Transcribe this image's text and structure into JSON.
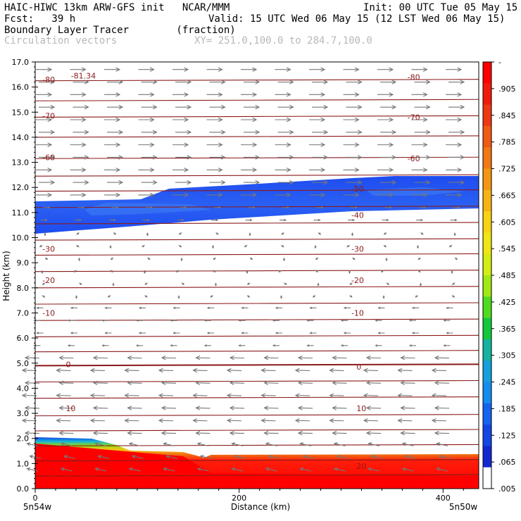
{
  "header": {
    "line1_left": "HAIC-HIWC 13km ARW-GFS init   NCAR/MMM",
    "line1_right": "Init: 00 UTC Tue 05 May 15",
    "fcst": "Fcst:   39 h",
    "valid": "Valid: 15 UTC Wed 06 May 15 (12 LST Wed 06 May 15)",
    "field1": "Boundary Layer Tracer        (fraction)",
    "field2": "Circulation vectors",
    "xy": "XY= 251.0,100.0 to 284.7,100.0"
  },
  "chart_data": {
    "type": "heatmap",
    "xlabel": "Distance (km)",
    "ylabel": "Height (km)",
    "xlim": [
      0,
      435
    ],
    "ylim": [
      0,
      17
    ],
    "x_ticks": [
      0,
      200,
      400
    ],
    "y_ticks": [
      "0.0",
      "1.0",
      "2.0",
      "3.0",
      "4.0",
      "5.0",
      "6.0",
      "7.0",
      "8.0",
      "9.0",
      "10.0",
      "11.0",
      "12.0",
      "13.0",
      "14.0",
      "15.0",
      "16.0",
      "17.0"
    ],
    "x_end_labels": {
      "left": "5n54w",
      "right": "5n50w"
    },
    "colorbar": {
      "labels": [
        "-",
        ".905",
        ".845",
        ".785",
        ".725",
        ".665",
        ".605",
        ".545",
        ".485",
        ".425",
        ".365",
        ".305",
        ".245",
        ".185",
        ".125",
        ".065",
        ".005"
      ],
      "colors": [
        "#ff0000",
        "#f21a0a",
        "#ee3814",
        "#f05a14",
        "#f27814",
        "#f49614",
        "#f6b414",
        "#f8d214",
        "#f0e614",
        "#d2ee14",
        "#a0ea14",
        "#50dc1e",
        "#14c83c",
        "#14b4a0",
        "#14a0dc",
        "#148cf0",
        "#1464f0",
        "#1446e6",
        "#1428d2",
        "#ffffff"
      ]
    },
    "isotherm_labels": [
      {
        "text": "-81.34",
        "x": 35,
        "y": 16.45
      },
      {
        "text": "-80",
        "x": 7,
        "y": 16.3
      },
      {
        "text": "-80",
        "x": 365,
        "y": 16.4
      },
      {
        "text": "-70",
        "x": 7,
        "y": 14.85
      },
      {
        "text": "-70",
        "x": 365,
        "y": 14.8
      },
      {
        "text": "-60",
        "x": 7,
        "y": 13.2
      },
      {
        "text": "-60",
        "x": 365,
        "y": 13.15
      },
      {
        "text": "-50",
        "x": 310,
        "y": 11.95
      },
      {
        "text": "-40",
        "x": 310,
        "y": 10.9
      },
      {
        "text": "-30",
        "x": 7,
        "y": 9.55
      },
      {
        "text": "-30",
        "x": 310,
        "y": 9.55
      },
      {
        "text": "-20",
        "x": 7,
        "y": 8.3
      },
      {
        "text": "-20",
        "x": 310,
        "y": 8.3
      },
      {
        "text": "-10",
        "x": 7,
        "y": 7.0
      },
      {
        "text": "-10",
        "x": 310,
        "y": 7.0
      },
      {
        "text": "0",
        "x": 30,
        "y": 4.95
      },
      {
        "text": "0",
        "x": 315,
        "y": 4.85
      },
      {
        "text": "10",
        "x": 30,
        "y": 3.2
      },
      {
        "text": "10",
        "x": 315,
        "y": 3.2
      },
      {
        "text": "20",
        "x": 315,
        "y": 0.9
      }
    ],
    "tracer_regions": [
      {
        "name": "upper-layer",
        "level": "0.005-0.065",
        "top_left": 11.45,
        "top_right": 12.4,
        "bottom": 10.3
      },
      {
        "name": "boundary-layer",
        "level": "0.905-1.0",
        "top_left": 2.0,
        "top_right": 1.1
      }
    ]
  }
}
